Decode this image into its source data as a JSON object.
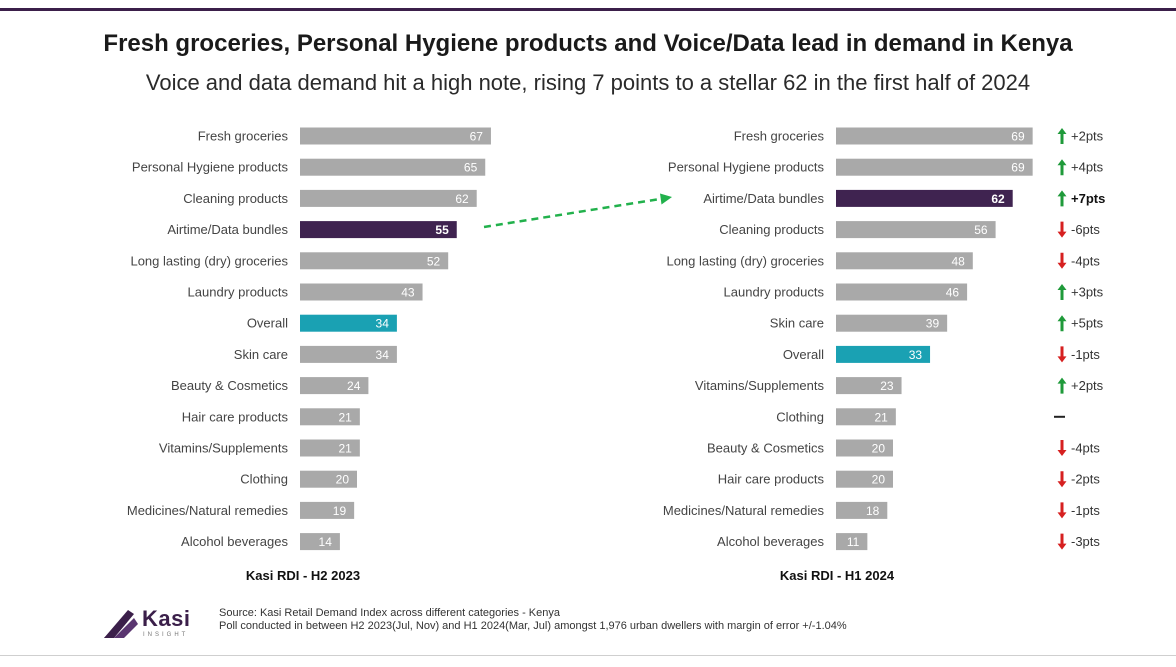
{
  "title": "Fresh groceries, Personal Hygiene products and Voice/Data lead in demand in Kenya",
  "subtitle": "Voice and data demand hit a high note, rising 7 points to a stellar 62 in the first half of 2024",
  "colors": {
    "default": "#a9a9a9",
    "highlight": "#3f2350",
    "overall": "#1aa1b3",
    "up": "#1f9a3a",
    "down": "#d62020",
    "arrow": "#22b14c"
  },
  "chart_data": [
    {
      "type": "bar",
      "orientation": "horizontal",
      "title": "Kasi RDI - H2 2023",
      "categories": [
        "Fresh groceries",
        "Personal Hygiene products",
        "Cleaning products",
        "Airtime/Data bundles",
        "Long lasting (dry) groceries",
        "Laundry products",
        "Overall",
        "Skin care",
        "Beauty & Cosmetics",
        "Hair care products",
        "Vitamins/Supplements",
        "Clothing",
        "Medicines/Natural remedies",
        "Alcohol beverages"
      ],
      "values": [
        67,
        65,
        62,
        55,
        52,
        43,
        34,
        34,
        24,
        21,
        21,
        20,
        19,
        14
      ],
      "highlight": "Airtime/Data bundles",
      "overall": "Overall"
    },
    {
      "type": "bar",
      "orientation": "horizontal",
      "title": "Kasi RDI - H1 2024",
      "categories": [
        "Fresh groceries",
        "Personal Hygiene products",
        "Airtime/Data bundles",
        "Cleaning products",
        "Long lasting (dry) groceries",
        "Laundry products",
        "Skin care",
        "Overall",
        "Vitamins/Supplements",
        "Clothing",
        "Beauty & Cosmetics",
        "Hair care products",
        "Medicines/Natural remedies",
        "Alcohol beverages"
      ],
      "values": [
        69,
        69,
        62,
        56,
        48,
        46,
        39,
        33,
        23,
        21,
        20,
        20,
        18,
        11
      ],
      "highlight": "Airtime/Data bundles",
      "overall": "Overall",
      "changes": [
        {
          "text": "+2pts",
          "dir": "up"
        },
        {
          "text": "+4pts",
          "dir": "up"
        },
        {
          "text": "+7pts",
          "dir": "up",
          "bold": true
        },
        {
          "text": "-6pts",
          "dir": "down"
        },
        {
          "text": "-4pts",
          "dir": "down"
        },
        {
          "text": "+3pts",
          "dir": "up"
        },
        {
          "text": "+5pts",
          "dir": "up"
        },
        {
          "text": "-1pts",
          "dir": "down"
        },
        {
          "text": "+2pts",
          "dir": "up"
        },
        {
          "text": "",
          "dir": "flat"
        },
        {
          "text": "-4pts",
          "dir": "down"
        },
        {
          "text": "-2pts",
          "dir": "down"
        },
        {
          "text": "-1pts",
          "dir": "down"
        },
        {
          "text": "-3pts",
          "dir": "down"
        }
      ]
    }
  ],
  "logo": {
    "name": "Kasi",
    "sub": "INSIGHT"
  },
  "source": {
    "line1": "Source: Kasi Retail Demand Index across different categories - Kenya",
    "line2": "Poll conducted  in between H2 2023(Jul, Nov) and H1 2024(Mar, Jul) amongst 1,976 urban dwellers with margin of error +/-1.04%"
  }
}
